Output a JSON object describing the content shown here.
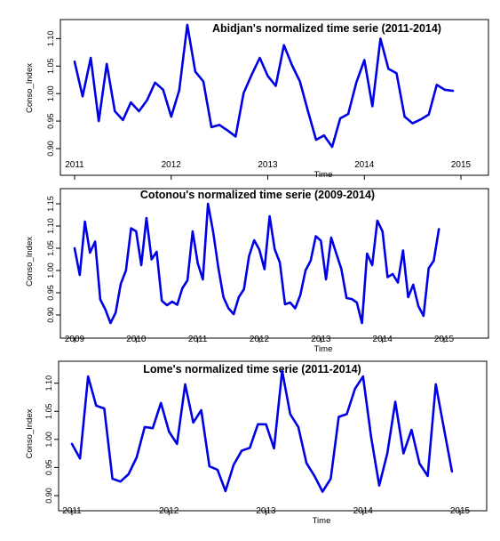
{
  "chart_data": [
    {
      "type": "line",
      "title": "Abidjan's normalized time serie (2011-2014)",
      "xlabel": "Time",
      "ylabel": "Conso_Index",
      "xlim": [
        2011,
        2015
      ],
      "ylim": [
        0.9,
        1.12
      ],
      "xticks": [
        2011,
        2012,
        2013,
        2014,
        2015
      ],
      "yticks": [
        "0.90",
        "0.95",
        "1.00",
        "1.05",
        "1.10"
      ],
      "color": "#0000e6",
      "grid": false,
      "series": [
        {
          "x": [
            2011.0,
            2011.083,
            2011.167,
            2011.25,
            2011.333,
            2011.417,
            2011.5,
            2011.583,
            2011.667,
            2011.75,
            2011.833,
            2011.917,
            2012.0,
            2012.083,
            2012.167,
            2012.25,
            2012.333,
            2012.417,
            2012.5,
            2012.583,
            2012.667,
            2012.75,
            2012.833,
            2012.917,
            2013.0,
            2013.083,
            2013.167,
            2013.25,
            2013.333,
            2013.417,
            2013.5,
            2013.583,
            2013.667,
            2013.75,
            2013.833,
            2013.917,
            2014.0,
            2014.083,
            2014.167,
            2014.25,
            2014.333,
            2014.417,
            2014.5,
            2014.583,
            2014.667,
            2014.75,
            2014.833,
            2014.917
          ],
          "y": [
            1.058,
            0.995,
            1.065,
            0.95,
            1.054,
            0.968,
            0.952,
            0.984,
            0.968,
            0.988,
            1.02,
            1.007,
            0.958,
            1.006,
            1.125,
            1.04,
            1.022,
            0.939,
            0.943,
            0.933,
            0.922,
            1.001,
            1.034,
            1.065,
            1.032,
            1.014,
            1.088,
            1.052,
            1.022,
            0.968,
            0.916,
            0.924,
            0.903,
            0.955,
            0.963,
            1.02,
            1.061,
            0.977,
            1.1,
            1.045,
            1.037,
            0.958,
            0.946,
            0.953,
            0.962,
            1.016,
            1.007,
            1.005
          ]
        }
      ]
    },
    {
      "type": "line",
      "title": "Cotonou's normalized time serie (2009-2014)",
      "xlabel": "Time",
      "ylabel": "Conso_Index",
      "xlim": [
        2009,
        2015
      ],
      "ylim": [
        0.88,
        1.16
      ],
      "xticks": [
        2009,
        2010,
        2011,
        2012,
        2013,
        2014,
        2015
      ],
      "yticks": [
        "0.90",
        "0.95",
        "1.00",
        "1.05",
        "1.10",
        "1.15"
      ],
      "color": "#0000e6",
      "grid": false,
      "series": [
        {
          "x": [
            2009.0,
            2009.083,
            2009.167,
            2009.25,
            2009.333,
            2009.417,
            2009.5,
            2009.583,
            2009.667,
            2009.75,
            2009.833,
            2009.917,
            2010.0,
            2010.083,
            2010.167,
            2010.25,
            2010.333,
            2010.417,
            2010.5,
            2010.583,
            2010.667,
            2010.75,
            2010.833,
            2010.917,
            2011.0,
            2011.083,
            2011.167,
            2011.25,
            2011.333,
            2011.417,
            2011.5,
            2011.583,
            2011.667,
            2011.75,
            2011.833,
            2011.917,
            2012.0,
            2012.083,
            2012.167,
            2012.25,
            2012.333,
            2012.417,
            2012.5,
            2012.583,
            2012.667,
            2012.75,
            2012.833,
            2012.917,
            2013.0,
            2013.083,
            2013.167,
            2013.25,
            2013.333,
            2013.417,
            2013.5,
            2013.583,
            2013.667,
            2013.75,
            2013.833,
            2013.917,
            2014.0,
            2014.083,
            2014.167,
            2014.25,
            2014.333,
            2014.417,
            2014.5,
            2014.583,
            2014.667,
            2014.75,
            2014.833,
            2014.917
          ],
          "y": [
            1.05,
            0.99,
            1.11,
            1.04,
            1.065,
            0.935,
            0.912,
            0.882,
            0.905,
            0.97,
            1.0,
            1.095,
            1.088,
            1.012,
            1.118,
            1.025,
            1.042,
            0.932,
            0.922,
            0.93,
            0.923,
            0.96,
            0.978,
            1.088,
            1.016,
            0.98,
            1.15,
            1.087,
            1.007,
            0.94,
            0.915,
            0.902,
            0.94,
            0.958,
            1.032,
            1.068,
            1.047,
            1.003,
            1.122,
            1.048,
            1.018,
            0.924,
            0.928,
            0.915,
            0.945,
            1.0,
            1.022,
            1.077,
            1.067,
            0.98,
            1.074,
            1.038,
            1.003,
            0.938,
            0.936,
            0.928,
            0.882,
            1.038,
            1.012,
            1.112,
            1.088,
            0.985,
            0.992,
            0.973,
            1.045,
            0.94,
            0.968,
            0.92,
            0.898,
            1.005,
            1.022,
            1.093
          ]
        }
      ]
    },
    {
      "type": "line",
      "title": "Lome's normalized time serie (2011-2014)",
      "xlabel": "Time",
      "ylabel": "Conso_Index",
      "xlim": [
        2011,
        2015
      ],
      "ylim": [
        0.9,
        1.12
      ],
      "xticks": [
        2011,
        2012,
        2013,
        2014,
        2015
      ],
      "yticks": [
        "0.90",
        "0.95",
        "1.00",
        "1.05",
        "1.10"
      ],
      "color": "#0000e6",
      "grid": false,
      "series": [
        {
          "x": [
            2011.0,
            2011.083,
            2011.167,
            2011.25,
            2011.333,
            2011.417,
            2011.5,
            2011.583,
            2011.667,
            2011.75,
            2011.833,
            2011.917,
            2012.0,
            2012.083,
            2012.167,
            2012.25,
            2012.333,
            2012.417,
            2012.5,
            2012.583,
            2012.667,
            2012.75,
            2012.833,
            2012.917,
            2013.0,
            2013.083,
            2013.167,
            2013.25,
            2013.333,
            2013.417,
            2013.5,
            2013.583,
            2013.667,
            2013.75,
            2013.833,
            2013.917,
            2014.0,
            2014.083,
            2014.167,
            2014.25,
            2014.333,
            2014.417,
            2014.5,
            2014.583,
            2014.667,
            2014.75,
            2014.833,
            2014.917
          ],
          "y": [
            0.992,
            0.966,
            1.112,
            1.06,
            1.055,
            0.93,
            0.925,
            0.938,
            0.968,
            1.022,
            1.02,
            1.065,
            1.014,
            0.992,
            1.098,
            1.03,
            1.052,
            0.952,
            0.946,
            0.908,
            0.955,
            0.98,
            0.985,
            1.027,
            1.027,
            0.984,
            1.122,
            1.045,
            1.022,
            0.958,
            0.935,
            0.907,
            0.93,
            1.04,
            1.045,
            1.09,
            1.112,
            1.005,
            0.918,
            0.975,
            1.067,
            0.975,
            1.017,
            0.957,
            0.935,
            1.098,
            1.02,
            0.943
          ]
        }
      ]
    }
  ]
}
